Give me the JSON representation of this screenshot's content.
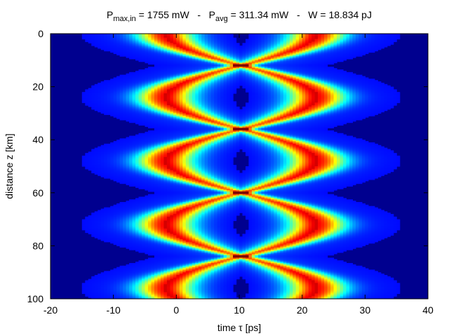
{
  "chart_data": {
    "type": "heatmap",
    "title_parts": {
      "p_max_base": "P",
      "p_max_sub": "max,in",
      "p_max_value": " = 1755 mW",
      "sep1": "   -   ",
      "p_avg_base": "P",
      "p_avg_sub": "avg",
      "p_avg_value": " = 311.34 mW",
      "sep2": "   -   ",
      "energy": "W = 18.834 pJ"
    },
    "xlabel": "time τ [ps]",
    "ylabel": "distance z [km]",
    "xlim": [
      -20,
      40
    ],
    "ylim": [
      0,
      100
    ],
    "y_inverted": true,
    "x_ticks": [
      -20,
      -10,
      0,
      10,
      20,
      30,
      40
    ],
    "x_tick_labels": [
      "-20",
      "-10",
      "0",
      "10",
      "20",
      "30",
      "40"
    ],
    "y_ticks": [
      0,
      20,
      40,
      60,
      80,
      100
    ],
    "y_tick_labels": [
      "0",
      "20",
      "40",
      "60",
      "80",
      "100"
    ],
    "colormap": "jet",
    "background_color": "#00008f",
    "pattern": {
      "center_tau": 10.3,
      "focus_points_z": [
        12,
        36,
        60,
        84
      ],
      "period_z": 24,
      "max_half_width_tau": 12
    },
    "grid": false,
    "legend": "none"
  }
}
